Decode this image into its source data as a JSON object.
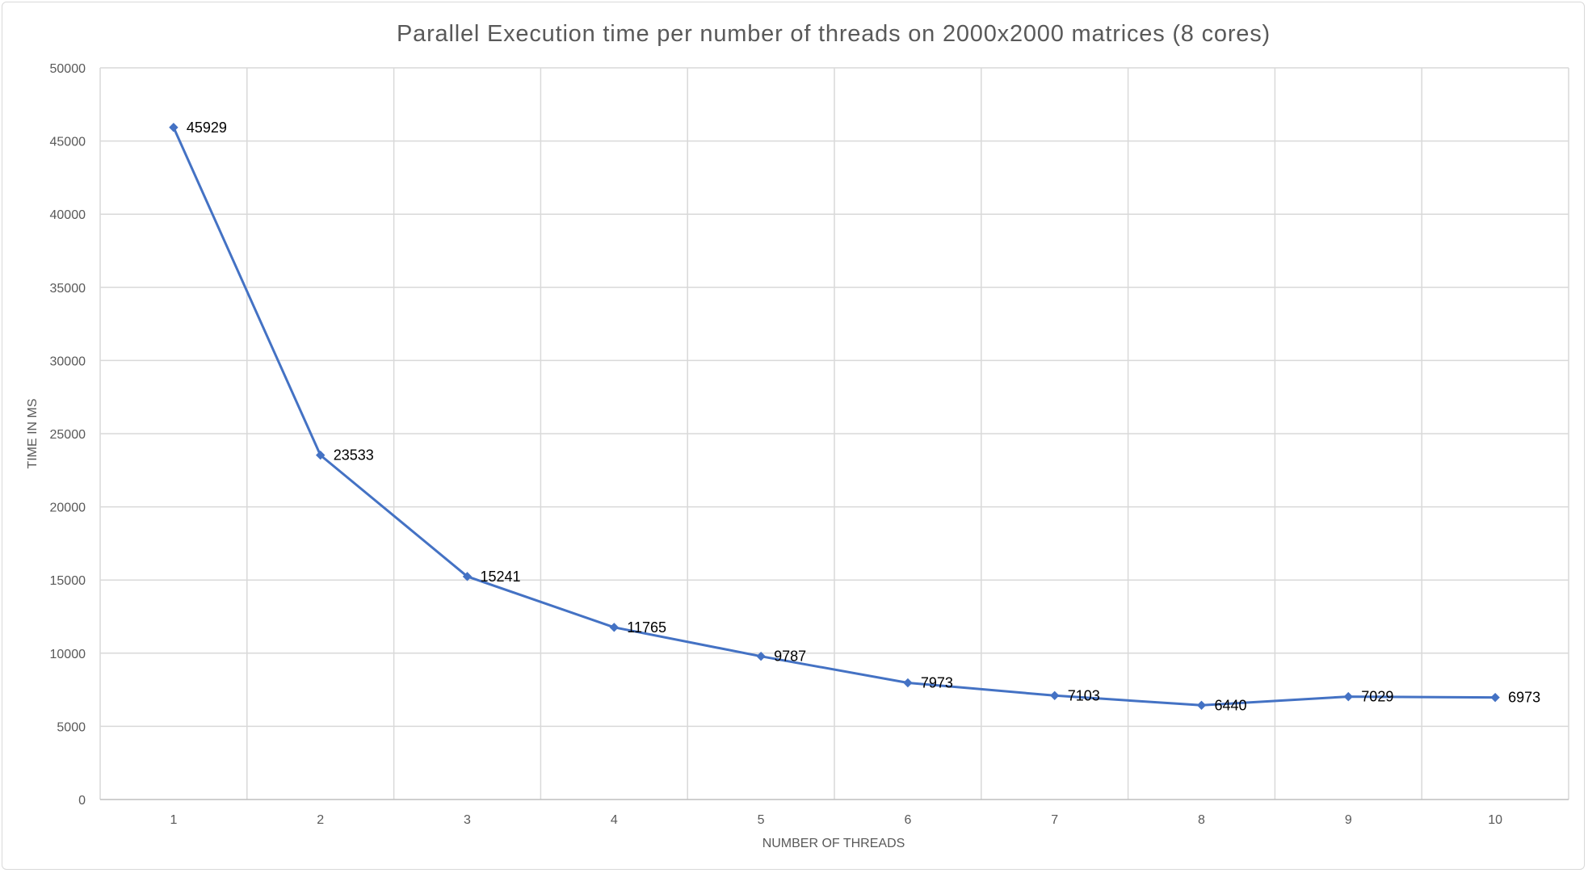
{
  "chart_data": {
    "type": "line",
    "title": "Parallel Execution time per number of threads on 2000x2000 matrices (8 cores)",
    "xlabel": "NUMBER OF THREADS",
    "ylabel": "TIME IN MS",
    "categories": [
      "1",
      "2",
      "3",
      "4",
      "5",
      "6",
      "7",
      "8",
      "9",
      "10"
    ],
    "series": [
      {
        "values": [
          45929,
          23533,
          15241,
          11765,
          9787,
          7973,
          7103,
          6440,
          7029,
          6973
        ],
        "color": "#4472c4",
        "marker": "diamond",
        "data_labels": [
          "45929",
          "23533",
          "15241",
          "11765",
          "9787",
          "7973",
          "7103",
          "6440",
          "7029",
          "6973"
        ]
      }
    ],
    "ylim": [
      0,
      50000
    ],
    "yticks": [
      "0",
      "5000",
      "10000",
      "15000",
      "20000",
      "25000",
      "30000",
      "35000",
      "40000",
      "45000",
      "50000"
    ],
    "grid": true,
    "legend": "none"
  }
}
